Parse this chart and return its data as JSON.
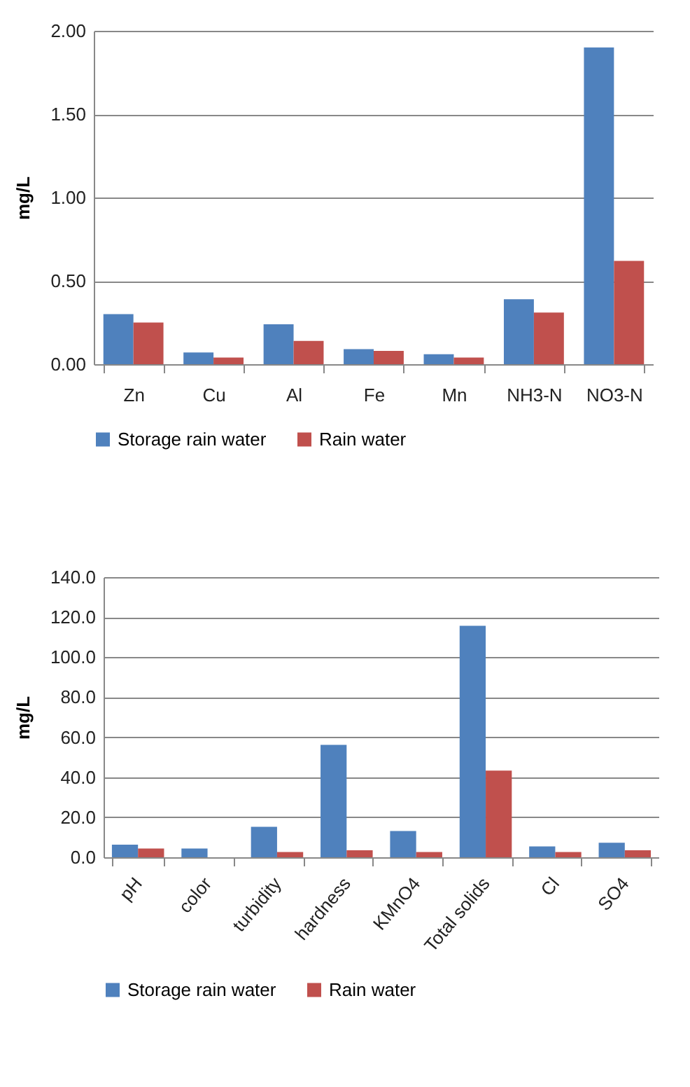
{
  "chart_data": [
    {
      "type": "bar",
      "ylabel": "mg/L",
      "categories": [
        "Zn",
        "Cu",
        "Al",
        "Fe",
        "Mn",
        "NH3-N",
        "NO3-N"
      ],
      "series": [
        {
          "name": "Storage rain water",
          "color": "#4f81bd",
          "values": [
            0.3,
            0.07,
            0.24,
            0.09,
            0.06,
            0.39,
            1.9
          ]
        },
        {
          "name": "Rain water",
          "color": "#c0504d",
          "values": [
            0.25,
            0.04,
            0.14,
            0.08,
            0.04,
            0.31,
            0.62
          ]
        }
      ],
      "ylim": [
        0,
        2
      ],
      "yticks": [
        {
          "value": 0,
          "label": "0.00"
        },
        {
          "value": 0.5,
          "label": "0.50"
        },
        {
          "value": 1,
          "label": "1.00"
        },
        {
          "value": 1.5,
          "label": "1.50"
        },
        {
          "value": 2,
          "label": "2.00"
        }
      ],
      "grid": "y",
      "legend": "bottom"
    },
    {
      "type": "bar",
      "ylabel": "mg/L",
      "categories": [
        "pH",
        "color",
        "turbidity",
        "hardness",
        "KMnO4",
        "Total solids",
        "Cl",
        "SO4"
      ],
      "series": [
        {
          "name": "Storage rain water",
          "color": "#4f81bd",
          "values": [
            6.3,
            4.4,
            15.2,
            56.2,
            13.1,
            115.7,
            5.4,
            7.3
          ]
        },
        {
          "name": "Rain water",
          "color": "#c0504d",
          "values": [
            4.4,
            null,
            2.6,
            3.5,
            2.6,
            43.3,
            2.6,
            3.5
          ]
        }
      ],
      "ylim": [
        0,
        140
      ],
      "yticks": [
        {
          "value": 0,
          "label": "0.0"
        },
        {
          "value": 20,
          "label": "20.0"
        },
        {
          "value": 40,
          "label": "40.0"
        },
        {
          "value": 60,
          "label": "60.0"
        },
        {
          "value": 80,
          "label": "80.0"
        },
        {
          "value": 100,
          "label": "100.0"
        },
        {
          "value": 120,
          "label": "120.0"
        },
        {
          "value": 140,
          "label": "140.0"
        }
      ],
      "grid": "y",
      "legend": "bottom"
    }
  ]
}
